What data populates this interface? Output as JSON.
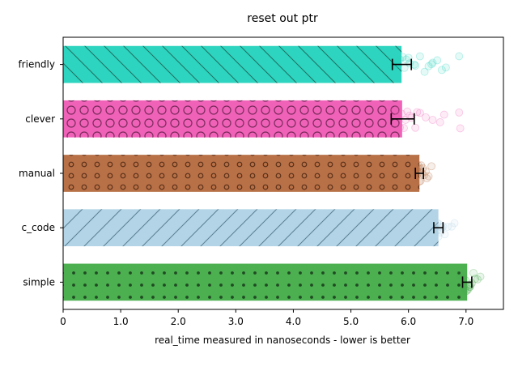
{
  "chart_data": {
    "type": "bar",
    "orientation": "horizontal",
    "title": "reset out ptr",
    "xlabel": "real_time measured in nanoseconds - lower is better",
    "ylabel": "",
    "xlim": [
      0,
      7.65
    ],
    "xticks": [
      0,
      1,
      2,
      3,
      4,
      5,
      6,
      7
    ],
    "xtick_labels": [
      "0",
      "1.0",
      "2.0",
      "3.0",
      "4.0",
      "5.0",
      "6.0",
      "7.0"
    ],
    "categories": [
      "friendly",
      "clever",
      "manual",
      "c_code",
      "simple"
    ],
    "values": [
      5.88,
      5.89,
      6.19,
      6.52,
      7.02
    ],
    "error_low": [
      5.72,
      5.7,
      6.12,
      6.44,
      6.94
    ],
    "error_high": [
      6.05,
      6.1,
      6.26,
      6.6,
      7.1
    ],
    "colors": [
      "#2dd4bf",
      "#f062b8",
      "#b87047",
      "#b3d4e6",
      "#4caf50"
    ],
    "hatches": [
      "backslash",
      "circles-large",
      "circles-small",
      "slash",
      "dots"
    ],
    "samples": [
      [
        5.75,
        5.82,
        5.9,
        5.96,
        6.02,
        6.1,
        6.2,
        6.28,
        6.35,
        6.42,
        6.5,
        6.58,
        6.65,
        6.88,
        5.78,
        5.85,
        5.93,
        6.0,
        6.12,
        6.4
      ],
      [
        5.72,
        5.78,
        5.85,
        5.92,
        5.98,
        6.05,
        6.12,
        6.2,
        6.3,
        6.42,
        6.55,
        6.62,
        6.88,
        6.9,
        5.8,
        5.88,
        5.95,
        6.02,
        6.15
      ],
      [
        6.1,
        6.13,
        6.15,
        6.17,
        6.19,
        6.2,
        6.21,
        6.23,
        6.25,
        6.27,
        6.3,
        6.32,
        6.35,
        6.4,
        6.16,
        6.18,
        6.22
      ],
      [
        6.42,
        6.45,
        6.48,
        6.5,
        6.52,
        6.54,
        6.56,
        6.58,
        6.6,
        6.63,
        6.68,
        6.75,
        6.8,
        6.5,
        6.55
      ],
      [
        6.9,
        6.93,
        6.96,
        6.98,
        7.0,
        7.02,
        7.04,
        7.06,
        7.08,
        7.1,
        7.13,
        7.16,
        7.2,
        7.25,
        6.99,
        7.03,
        7.07
      ]
    ]
  }
}
